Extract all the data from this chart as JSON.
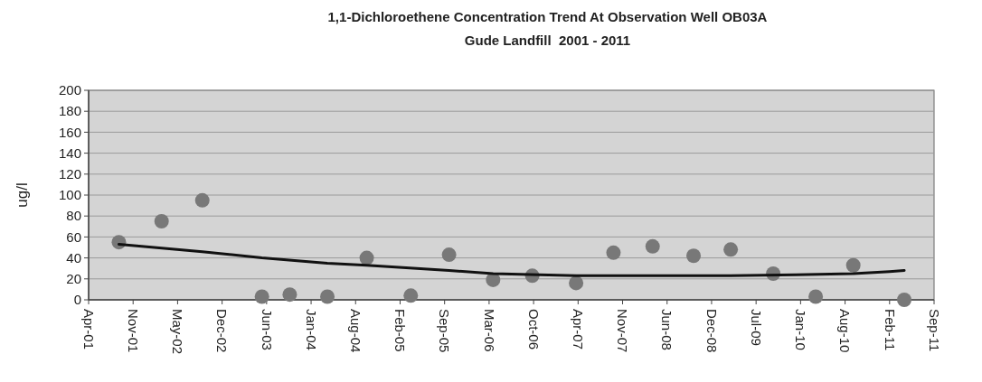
{
  "chart_data": {
    "type": "scatter",
    "title": "1,1-Dichloroethene Concentration Trend At Observation Well OB03A",
    "subtitle": "Gude Landfill  2001 - 2011",
    "ylabel": "ug/l",
    "x": [
      "2001-09-02",
      "2002-03-13",
      "2002-09-12",
      "2003-06-07",
      "2003-10-10",
      "2004-03-27",
      "2004-09-20",
      "2005-04-06",
      "2005-09-25",
      "2006-04-11",
      "2006-10-04",
      "2007-04-19",
      "2007-10-04",
      "2008-03-28",
      "2008-09-28",
      "2009-03-14",
      "2009-09-21",
      "2010-03-31",
      "2010-09-16",
      "2011-05-03"
    ],
    "series": [
      {
        "color": "#787878",
        "marker": "circle",
        "values": [
          55,
          75,
          95,
          3,
          5,
          3,
          40,
          4,
          43,
          19,
          23,
          16,
          45,
          51,
          42,
          48,
          25,
          3,
          33,
          0
        ]
      },
      {
        "type": "line",
        "color": "#111111",
        "marker": "none",
        "line_style": "solid",
        "x": [
          "2001-09-02",
          "2002-09-12",
          "2003-06-07",
          "2004-03-27",
          "2004-09-20",
          "2005-09-25",
          "2006-04-11",
          "2007-04-19",
          "2008-03-28",
          "2009-03-14",
          "2010-01-01",
          "2010-09-16",
          "2011-02-26",
          "2011-05-03"
        ],
        "values": [
          53,
          46,
          40,
          35,
          33,
          28,
          25,
          23,
          23,
          23,
          24,
          25,
          27,
          28
        ]
      }
    ],
    "xlim": [
      "2001-04-19",
      "2011-09-14"
    ],
    "xticks": [
      {
        "value": "2001-04-19",
        "label": "Apr-01"
      },
      {
        "value": "2001-11-05",
        "label": "Nov-01"
      },
      {
        "value": "2002-05-24",
        "label": "May-02"
      },
      {
        "value": "2002-12-10",
        "label": "Dec-02"
      },
      {
        "value": "2003-06-28",
        "label": "Jun-03"
      },
      {
        "value": "2004-01-14",
        "label": "Jan-04"
      },
      {
        "value": "2004-08-01",
        "label": "Aug-04"
      },
      {
        "value": "2005-02-17",
        "label": "Feb-05"
      },
      {
        "value": "2005-09-05",
        "label": "Sep-05"
      },
      {
        "value": "2006-03-24",
        "label": "Mar-06"
      },
      {
        "value": "2006-10-10",
        "label": "Oct-06"
      },
      {
        "value": "2007-04-28",
        "label": "Apr-07"
      },
      {
        "value": "2007-11-14",
        "label": "Nov-07"
      },
      {
        "value": "2008-06-01",
        "label": "Jun-08"
      },
      {
        "value": "2008-12-18",
        "label": "Dec-08"
      },
      {
        "value": "2009-07-06",
        "label": "Jul-09"
      },
      {
        "value": "2010-01-22",
        "label": "Jan-10"
      },
      {
        "value": "2010-08-10",
        "label": "Aug-10"
      },
      {
        "value": "2011-02-26",
        "label": "Feb-11"
      },
      {
        "value": "2011-09-14",
        "label": "Sep-11"
      }
    ],
    "ylim": [
      0,
      200
    ],
    "yticks": [
      0,
      20,
      40,
      60,
      80,
      100,
      120,
      140,
      160,
      180,
      200
    ],
    "grid": "y"
  }
}
